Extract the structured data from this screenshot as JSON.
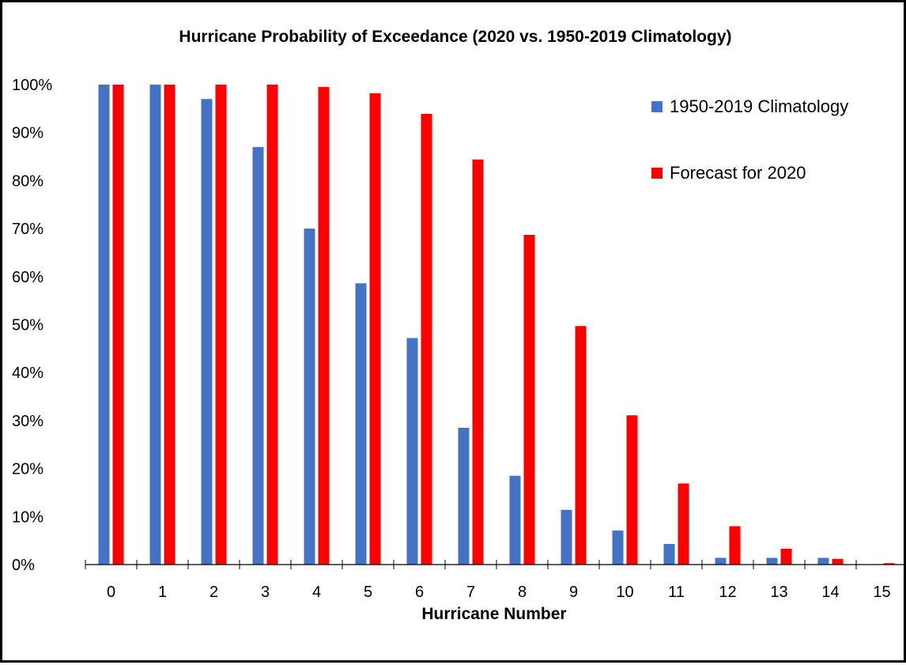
{
  "chart_data": {
    "type": "bar",
    "title": "Hurricane Probability of Exceedance (2020 vs. 1950-2019 Climatology)",
    "xlabel": "Hurricane Number",
    "ylabel": "",
    "categories": [
      "0",
      "1",
      "2",
      "3",
      "4",
      "5",
      "6",
      "7",
      "8",
      "9",
      "10",
      "11",
      "12",
      "13",
      "14",
      "15"
    ],
    "ytick_labels": [
      "0%",
      "10%",
      "20%",
      "30%",
      "40%",
      "50%",
      "60%",
      "70%",
      "80%",
      "90%",
      "100%"
    ],
    "ylim": [
      0,
      100
    ],
    "grid": false,
    "legend_position": "top-right",
    "series": [
      {
        "name": "1950-2019 Climatology",
        "color": "#4472C4",
        "values": [
          100,
          100,
          97,
          87,
          70,
          58.6,
          47.2,
          28.5,
          18.5,
          11.4,
          7.1,
          4.3,
          1.4,
          1.4,
          1.4,
          0
        ]
      },
      {
        "name": "Forecast for 2020",
        "color": "#FF0000",
        "values": [
          100,
          100,
          100,
          100,
          99.5,
          98.2,
          93.9,
          84.4,
          68.7,
          49.7,
          31.1,
          16.9,
          8.0,
          3.3,
          1.2,
          0.3
        ]
      }
    ]
  }
}
